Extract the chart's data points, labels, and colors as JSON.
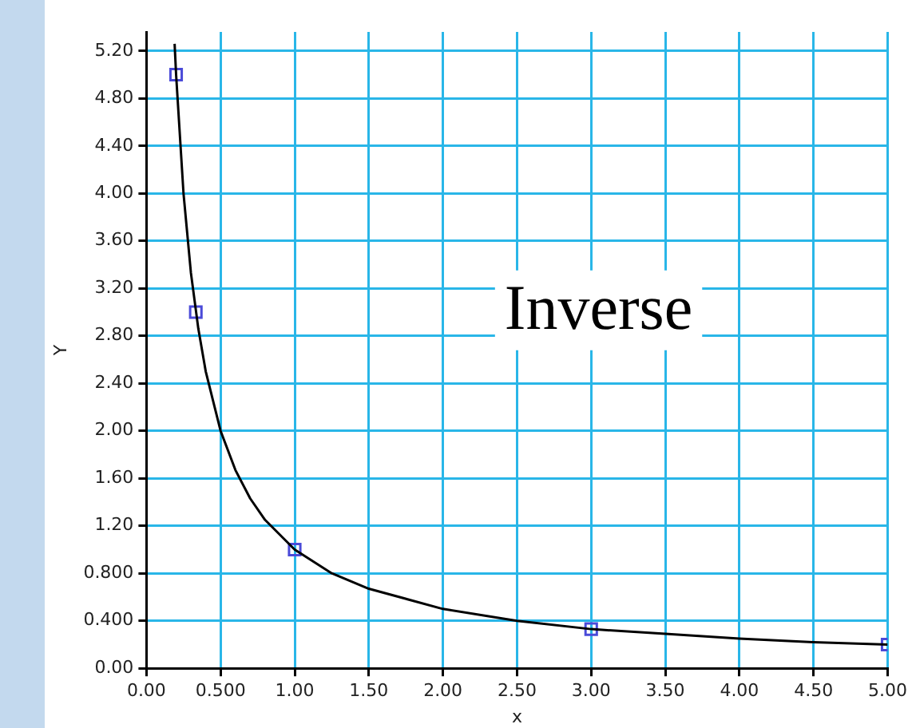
{
  "chart_data": {
    "type": "scatter",
    "xlabel": "x",
    "ylabel": "Y",
    "annotations": [
      "Inverse"
    ],
    "xlim": [
      0,
      5
    ],
    "ylim": [
      0,
      5.36
    ],
    "xticks": [
      {
        "value": 0,
        "label": "0.00"
      },
      {
        "value": 0.5,
        "label": "0.500"
      },
      {
        "value": 1,
        "label": "1.00"
      },
      {
        "value": 1.5,
        "label": "1.50"
      },
      {
        "value": 2,
        "label": "2.00"
      },
      {
        "value": 2.5,
        "label": "2.50"
      },
      {
        "value": 3,
        "label": "3.00"
      },
      {
        "value": 3.5,
        "label": "3.50"
      },
      {
        "value": 4,
        "label": "4.00"
      },
      {
        "value": 4.5,
        "label": "4.50"
      },
      {
        "value": 5,
        "label": "5.00"
      }
    ],
    "yticks": [
      {
        "value": 0,
        "label": "0.00"
      },
      {
        "value": 0.4,
        "label": "0.400"
      },
      {
        "value": 0.8,
        "label": "0.800"
      },
      {
        "value": 1.2,
        "label": "1.20"
      },
      {
        "value": 1.6,
        "label": "1.60"
      },
      {
        "value": 2,
        "label": "2.00"
      },
      {
        "value": 2.4,
        "label": "2.40"
      },
      {
        "value": 2.8,
        "label": "2.80"
      },
      {
        "value": 3.2,
        "label": "3.20"
      },
      {
        "value": 3.6,
        "label": "3.60"
      },
      {
        "value": 4,
        "label": "4.00"
      },
      {
        "value": 4.4,
        "label": "4.40"
      },
      {
        "value": 4.8,
        "label": "4.80"
      },
      {
        "value": 5.2,
        "label": "5.20"
      }
    ],
    "grid": true,
    "legend": false,
    "series": [
      {
        "type": "line",
        "marker": "none",
        "line_style": "solid",
        "color": "#000000",
        "x": [
          0.19,
          0.2,
          0.25,
          0.3,
          0.35,
          0.4,
          0.5,
          0.6,
          0.7,
          0.8,
          1,
          1.25,
          1.5,
          2,
          2.5,
          3,
          3.5,
          4,
          4.5,
          5
        ],
        "values": [
          5.26,
          5,
          4,
          3.33,
          2.86,
          2.5,
          2,
          1.67,
          1.43,
          1.25,
          1,
          0.8,
          0.67,
          0.5,
          0.4,
          0.33,
          0.29,
          0.25,
          0.22,
          0.2
        ]
      },
      {
        "marker": "square",
        "color": "#4a4ad8",
        "x": [
          0.2,
          0.333,
          1,
          3,
          5
        ],
        "values": [
          5,
          3,
          1,
          0.33,
          0.2
        ]
      }
    ]
  }
}
